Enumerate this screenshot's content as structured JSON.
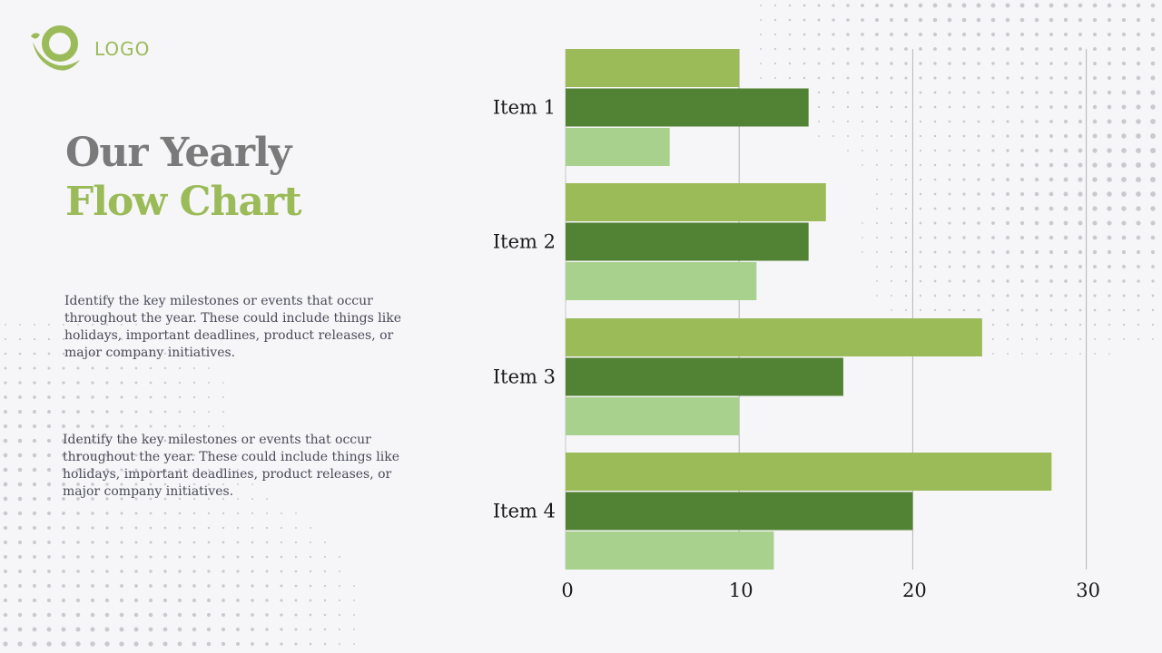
{
  "logo": {
    "text": "LOGO",
    "icon": "leaf-logo-icon",
    "color": "#9bbb59"
  },
  "title": {
    "line1": "Our Yearly",
    "line2": "Flow Chart"
  },
  "paragraphs": [
    "Identify the key milestones or events that occur throughout the year. These could include things like holidays, important deadlines, product releases, or major company initiatives.",
    "Identify the key milestones or events that occur throughout the year. These could include things like holidays, important deadlines, product releases, or major company initiatives."
  ],
  "colors": {
    "accent": "#9bbb59",
    "title_gray": "#7a7a7a",
    "series": [
      "#9bbb59",
      "#528234",
      "#a9d18e"
    ]
  },
  "chart_data": {
    "type": "bar",
    "orientation": "horizontal",
    "categories": [
      "Item 1",
      "Item 2",
      "Item 3",
      "Item 4"
    ],
    "series": [
      {
        "values": [
          10,
          15,
          24,
          28
        ]
      },
      {
        "values": [
          14,
          14,
          16,
          20
        ]
      },
      {
        "values": [
          6,
          11,
          10,
          12
        ]
      }
    ],
    "xlim": [
      0,
      30
    ],
    "xticks": [
      0,
      10,
      20,
      30
    ],
    "grid": "vertical",
    "legend": "none"
  }
}
